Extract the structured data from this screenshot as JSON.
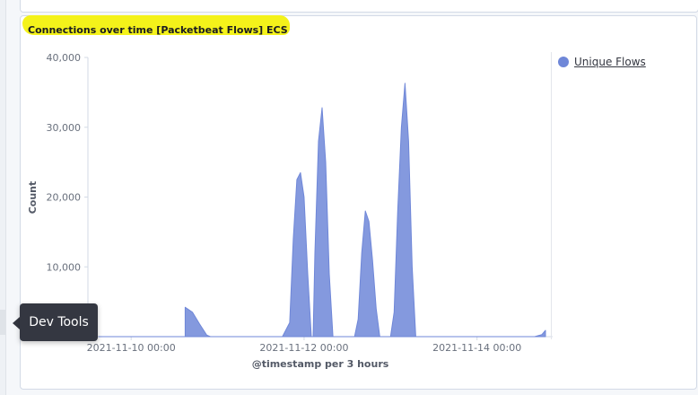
{
  "panel": {
    "title": "Connections over time [Packetbeat Flows] ECS",
    "highlight_color": "#f4f21a"
  },
  "legend": {
    "series_name": "Unique Flows",
    "color": "#6f87d8"
  },
  "tooltip": {
    "text": "Dev Tools"
  },
  "chart_data": {
    "type": "area",
    "title": "Connections over time [Packetbeat Flows] ECS",
    "xlabel": "@timestamp per 3 hours",
    "ylabel": "Count",
    "ylim": [
      0,
      40000
    ],
    "yticks": [
      10000,
      20000,
      30000,
      40000
    ],
    "ytick_labels": [
      "10,000",
      "20,000",
      "30,000",
      "40,000"
    ],
    "xtick_labels": [
      "2021-11-10 00:00",
      "2021-11-12 00:00",
      "2021-11-14 00:00"
    ],
    "xtick_positions_hours": [
      0,
      48,
      96
    ],
    "x_range_hours": [
      -12,
      116
    ],
    "grid": false,
    "legend_position": "right",
    "series": [
      {
        "name": "Unique Flows",
        "color": "#6f87d8",
        "points": [
          [
            -9,
            0
          ],
          [
            12,
            0
          ],
          [
            15,
            0
          ],
          [
            15,
            4200
          ],
          [
            17,
            3500
          ],
          [
            19,
            1800
          ],
          [
            21,
            200
          ],
          [
            22,
            0
          ],
          [
            42,
            0
          ],
          [
            44,
            2000
          ],
          [
            45,
            14000
          ],
          [
            46,
            22500
          ],
          [
            47,
            23500
          ],
          [
            48,
            20000
          ],
          [
            49,
            9000
          ],
          [
            50,
            0
          ],
          [
            50.5,
            0
          ],
          [
            51,
            12000
          ],
          [
            52,
            28000
          ],
          [
            53,
            32800
          ],
          [
            54,
            25000
          ],
          [
            55,
            9000
          ],
          [
            56,
            0
          ],
          [
            62,
            0
          ],
          [
            63,
            2500
          ],
          [
            64,
            12000
          ],
          [
            65,
            18000
          ],
          [
            66,
            16500
          ],
          [
            67,
            11000
          ],
          [
            68,
            4000
          ],
          [
            69,
            0
          ],
          [
            72,
            0
          ],
          [
            73,
            3500
          ],
          [
            74,
            18000
          ],
          [
            75,
            30000
          ],
          [
            76,
            36300
          ],
          [
            77,
            28000
          ],
          [
            78,
            10000
          ],
          [
            79,
            0
          ],
          [
            110,
            0
          ],
          [
            112,
            0
          ],
          [
            114,
            300
          ],
          [
            115,
            900
          ]
        ]
      }
    ]
  }
}
